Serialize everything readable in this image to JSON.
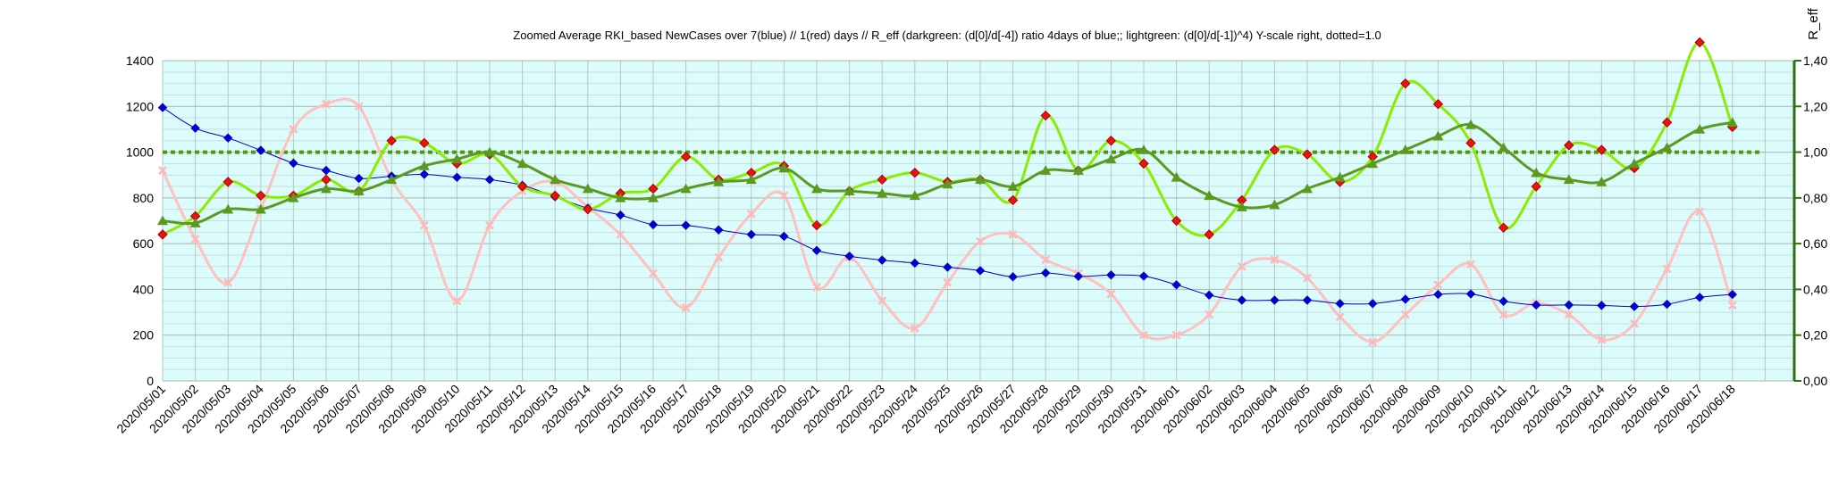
{
  "chart_data": {
    "type": "line",
    "title": "Zoomed Average RKI_based NewCases over 7(blue) // 1(red) days //  R_eff (darkgreen: (d[0]/d[-4]) ratio 4days of blue;; lightgreen: (d[0]/d[-1])^4) Y-scale right, dotted=1.0",
    "y2label": "R_eff",
    "ylim": [
      0,
      1400
    ],
    "y2lim": [
      0,
      1.4
    ],
    "yticks": [
      "0",
      "200",
      "400",
      "600",
      "800",
      "1000",
      "1200",
      "1400"
    ],
    "y2ticks": [
      "0,00",
      "0,20",
      "0,40",
      "0,60",
      "0,80",
      "1,00",
      "1,20",
      "1,40"
    ],
    "grid": true,
    "background_color": "#dcfbfb",
    "categories": [
      "2020/05/01",
      "2020/05/02",
      "2020/05/03",
      "2020/05/04",
      "2020/05/05",
      "2020/05/06",
      "2020/05/07",
      "2020/05/08",
      "2020/05/09",
      "2020/05/10",
      "2020/05/11",
      "2020/05/12",
      "2020/05/13",
      "2020/05/14",
      "2020/05/15",
      "2020/05/16",
      "2020/05/17",
      "2020/05/18",
      "2020/05/19",
      "2020/05/20",
      "2020/05/21",
      "2020/05/22",
      "2020/05/23",
      "2020/05/24",
      "2020/05/25",
      "2020/05/26",
      "2020/05/27",
      "2020/05/28",
      "2020/05/29",
      "2020/05/30",
      "2020/05/31",
      "2020/06/01",
      "2020/06/02",
      "2020/06/03",
      "2020/06/04",
      "2020/06/05",
      "2020/06/06",
      "2020/06/07",
      "2020/06/08",
      "2020/06/09",
      "2020/06/10",
      "2020/06/11",
      "2020/06/12",
      "2020/06/13",
      "2020/06/14",
      "2020/06/15",
      "2020/06/16",
      "2020/06/17",
      "2020/06/18"
    ],
    "series": [
      {
        "color": "#ffc0c0",
        "marker": "x",
        "axis": "left",
        "width": 3,
        "values": [
          920,
          620,
          430,
          750,
          1100,
          1210,
          1200,
          880,
          680,
          350,
          680,
          830,
          870,
          760,
          640,
          470,
          320,
          540,
          730,
          810,
          410,
          540,
          350,
          230,
          430,
          610,
          640,
          530,
          470,
          380,
          200,
          200,
          290,
          500,
          530,
          450,
          280,
          170,
          290,
          420,
          510,
          290,
          340,
          290,
          180,
          250,
          490,
          740,
          330
        ]
      },
      {
        "color": "#0000cc",
        "marker": "diamond",
        "axis": "left",
        "width": 1,
        "values": [
          1195,
          1105,
          1062,
          1008,
          952,
          920,
          885,
          895,
          903,
          890,
          880,
          855,
          805,
          755,
          725,
          683,
          680,
          660,
          640,
          632,
          570,
          545,
          528,
          515,
          497,
          482,
          455,
          472,
          457,
          463,
          458,
          420,
          375,
          353,
          353,
          353,
          338,
          338,
          357,
          378,
          380,
          348,
          332,
          332,
          330,
          325,
          335,
          365,
          378
        ]
      },
      {
        "color": "#88ee00",
        "marker": "diamond",
        "axis": "right",
        "width": 3,
        "values": [
          0.64,
          0.72,
          0.87,
          0.81,
          0.81,
          0.88,
          0.83,
          1.05,
          1.04,
          0.95,
          0.99,
          0.85,
          0.81,
          0.75,
          0.82,
          0.84,
          0.98,
          0.88,
          0.91,
          0.94,
          0.68,
          0.83,
          0.88,
          0.91,
          0.87,
          0.88,
          0.79,
          1.16,
          0.92,
          1.05,
          0.95,
          0.7,
          0.64,
          0.79,
          1.01,
          0.99,
          0.87,
          0.98,
          1.3,
          1.21,
          1.04,
          0.67,
          0.85,
          1.03,
          1.01,
          0.93,
          1.13,
          1.48,
          1.11
        ]
      },
      {
        "color": "#5a9a20",
        "marker": "triangle",
        "axis": "right",
        "width": 3,
        "values": [
          0.7,
          0.69,
          0.75,
          0.75,
          0.8,
          0.84,
          0.83,
          0.88,
          0.94,
          0.97,
          1.0,
          0.95,
          0.88,
          0.84,
          0.8,
          0.8,
          0.84,
          0.87,
          0.88,
          0.93,
          0.84,
          0.83,
          0.82,
          0.81,
          0.86,
          0.88,
          0.85,
          0.92,
          0.92,
          0.97,
          1.01,
          0.89,
          0.81,
          0.76,
          0.77,
          0.84,
          0.89,
          0.95,
          1.01,
          1.07,
          1.12,
          1.02,
          0.91,
          0.88,
          0.87,
          0.95,
          1.02,
          1.1,
          1.13
        ]
      }
    ],
    "reference_line": {
      "axis": "right",
      "value": 1.0,
      "color": "#4e9a06",
      "style": "dotted"
    }
  }
}
